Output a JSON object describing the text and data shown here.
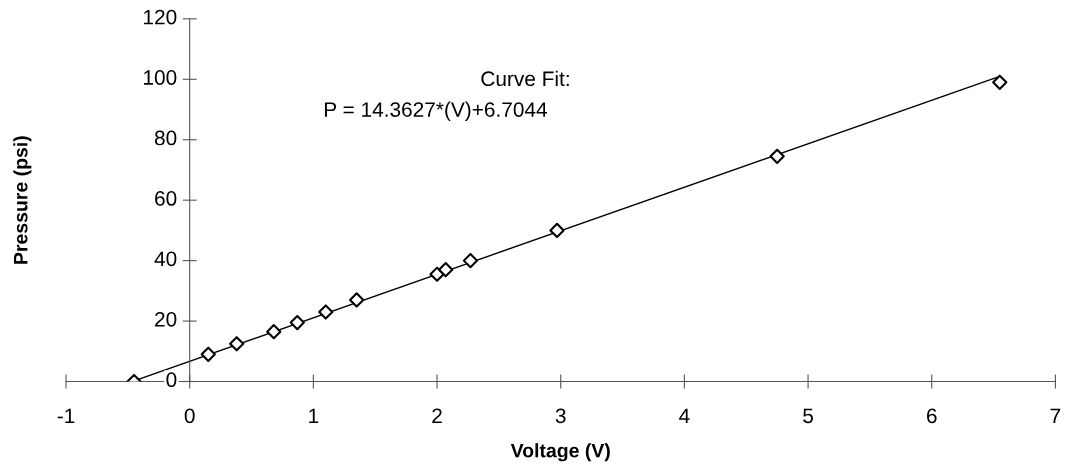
{
  "chart_data": {
    "type": "scatter",
    "xlabel": "Voltage (V)",
    "ylabel": "Pressure (psi)",
    "xlim": [
      -1,
      7
    ],
    "xticks": [
      -1,
      0,
      1,
      2,
      3,
      4,
      5,
      6,
      7
    ],
    "ylim": [
      0,
      120
    ],
    "yticks": [
      0,
      20,
      40,
      60,
      80,
      100,
      120
    ],
    "grid": false,
    "legend": false,
    "x": [
      -0.45,
      0.15,
      0.38,
      0.68,
      0.87,
      1.1,
      1.35,
      2.0,
      2.07,
      2.27,
      2.97,
      4.75,
      6.55
    ],
    "series": [
      {
        "marker": "diamond",
        "color": "#000000",
        "values": [
          0,
          9,
          12.5,
          16.5,
          19.5,
          23,
          27,
          35.5,
          37,
          40,
          50,
          74.5,
          99
        ]
      },
      {
        "type": "line",
        "marker": "none",
        "color": "#000000",
        "x": [
          -0.45,
          6.55
        ],
        "values": [
          0.2,
          101
        ]
      }
    ],
    "annotations": [
      "Curve Fit:",
      "P = 14.3627*(V)+6.7044"
    ]
  }
}
